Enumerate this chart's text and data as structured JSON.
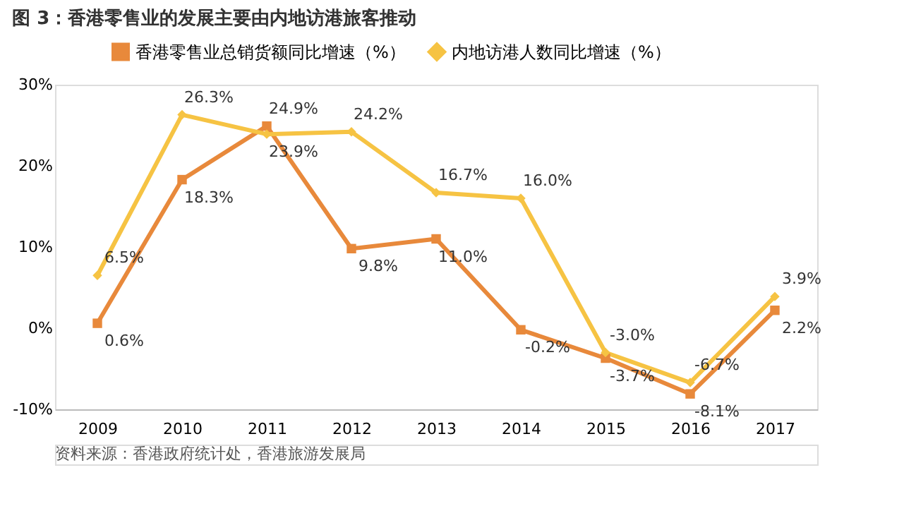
{
  "chart_data": {
    "type": "line",
    "title": "图 3：香港零售业的发展主要由内地访港旅客推动",
    "categories": [
      "2009",
      "2010",
      "2011",
      "2012",
      "2013",
      "2014",
      "2015",
      "2016",
      "2017"
    ],
    "series": [
      {
        "name": "香港零售业总销货额同比增速（%）",
        "color": "#e8893b",
        "marker": "square",
        "values": [
          0.6,
          18.3,
          24.9,
          9.8,
          11.0,
          -0.2,
          -3.7,
          -8.1,
          2.2
        ],
        "value_labels": [
          "0.6%",
          "18.3%",
          "24.9%",
          "9.8%",
          "11.0%",
          "-0.2%",
          "-3.7%",
          "-8.1%",
          "2.2%"
        ]
      },
      {
        "name": "内地访港人数同比增速（%）",
        "color": "#f6c343",
        "marker": "diamond",
        "values": [
          6.5,
          26.3,
          23.9,
          24.2,
          16.7,
          16.0,
          -3.0,
          -6.7,
          3.9
        ],
        "value_labels": [
          "6.5%",
          "26.3%",
          "23.9%",
          "24.2%",
          "16.7%",
          "16.0%",
          "-3.0%",
          "-6.7%",
          "3.9%"
        ]
      }
    ],
    "ylim": [
      -10,
      30
    ],
    "yticks": [
      {
        "value": -10,
        "label": "-10%"
      },
      {
        "value": 0,
        "label": "0%"
      },
      {
        "value": 10,
        "label": "10%"
      },
      {
        "value": 20,
        "label": "20%"
      },
      {
        "value": 30,
        "label": "30%"
      }
    ],
    "legend": "top",
    "grid": false,
    "line_style": "solid",
    "annotations": [
      "资料来源：香港政府统计处，香港旅游发展局"
    ]
  }
}
